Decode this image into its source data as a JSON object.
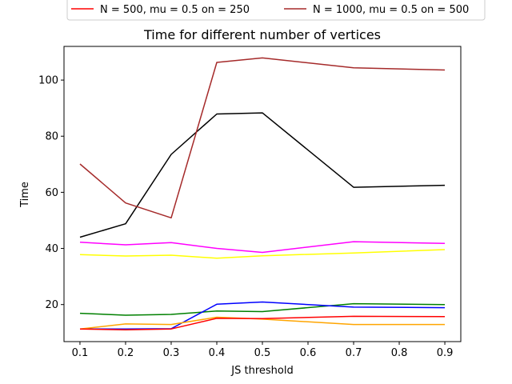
{
  "chart_data": {
    "type": "line",
    "title": "Time for different number of vertices",
    "xlabel": "JS threshold",
    "ylabel": "Time",
    "x": [
      0.1,
      0.2,
      0.3,
      0.4,
      0.5,
      0.7,
      0.9
    ],
    "xlim": [
      0.065,
      0.935
    ],
    "ylim": [
      6.8,
      112
    ],
    "xticks": [
      "0.1",
      "0.2",
      "0.3",
      "0.4",
      "0.5",
      "0.6",
      "0.7",
      "0.8",
      "0.9"
    ],
    "yticks": [
      "20",
      "40",
      "60",
      "80",
      "100"
    ],
    "grid": false,
    "legend_position": "above plot, partially clipped",
    "series": [
      {
        "color": "#008000",
        "values": [
          16.9,
          16.2,
          16.5,
          17.7,
          17.5,
          20.3,
          20.0
        ]
      },
      {
        "color": "#0000ff",
        "values": [
          11.3,
          11.3,
          11.4,
          20.1,
          20.9,
          19.1,
          18.9
        ]
      },
      {
        "color": "#ffa500",
        "values": [
          11.3,
          13.1,
          12.9,
          15.5,
          14.8,
          12.9,
          12.9
        ]
      },
      {
        "name": "N = 500, mu = 0.5 on = 250",
        "color": "#ff0000",
        "values": [
          11.3,
          11.0,
          11.3,
          15.1,
          15.0,
          15.8,
          15.7
        ]
      },
      {
        "color": "#ffff00",
        "values": [
          37.8,
          37.3,
          37.6,
          36.5,
          37.4,
          38.4,
          39.6
        ]
      },
      {
        "color": "#ff00ff",
        "values": [
          42.2,
          41.3,
          42.1,
          40.0,
          38.6,
          42.4,
          41.8
        ]
      },
      {
        "color": "#000000",
        "values": [
          44.0,
          48.8,
          73.5,
          87.9,
          88.3,
          61.8,
          62.5
        ]
      },
      {
        "name": "N = 1000, mu = 0.5 on = 500",
        "color": "#a52a2a",
        "values": [
          70.1,
          56.2,
          50.9,
          106.3,
          107.9,
          104.4,
          103.6
        ]
      }
    ]
  }
}
